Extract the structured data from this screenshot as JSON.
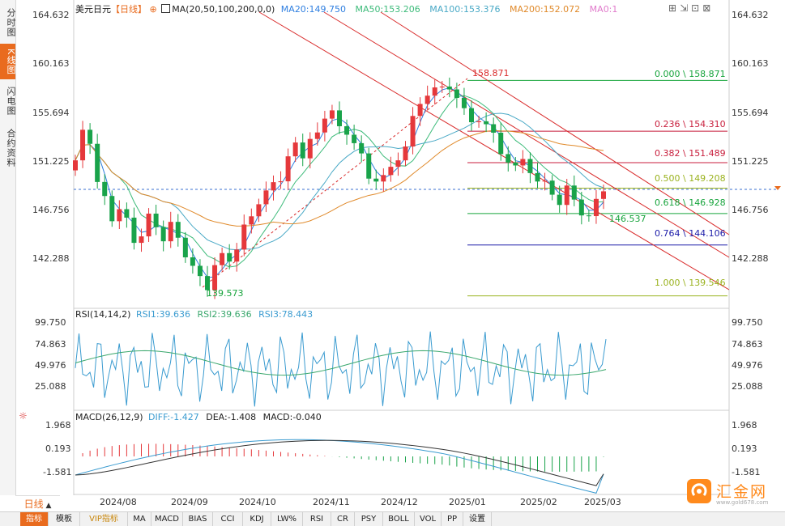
{
  "header": {
    "symbol": "美元日元",
    "period": "【日线】",
    "ma_label": "MA(20,50,100,200,0,0)",
    "ma20": "MA20:149.750",
    "ma50": "MA50:153.206",
    "ma100": "MA100:153.376",
    "ma200": "MA200:152.072",
    "ma0": "MA0:1"
  },
  "colors": {
    "up": "#e5383b",
    "down": "#19a34a",
    "ma20": "#2f7fe0",
    "ma50": "#3dbb7a",
    "ma100": "#49a9c6",
    "ma200": "#e08a2b",
    "fib": "#c81e3c",
    "channel": "#d92b2b",
    "orange": "#e96b1e"
  },
  "sidebar": {
    "tabs": [
      "分时图",
      "K线图",
      "闪电图",
      "合约资料"
    ]
  },
  "price_axis": [
    "164.632",
    "160.163",
    "155.694",
    "151.225",
    "146.756",
    "142.288"
  ],
  "rsi_panel": {
    "label": "RSI(14,14,2)",
    "rsi1": "RSI1:39.636",
    "rsi2": "RSI2:39.636",
    "rsi3": "RSI3:78.443",
    "axis": [
      "99.750",
      "74.863",
      "49.976",
      "25.088"
    ]
  },
  "macd_panel": {
    "label": "MACD(26,12,9)",
    "diff": "DIFF:-1.427",
    "dea": "DEA:-1.408",
    "macd": "MACD:-0.040",
    "axis": [
      "1.968",
      "0.193",
      "-1.581"
    ]
  },
  "time_axis": [
    "2024/08",
    "2024/09",
    "2024/10",
    "2024/11",
    "2024/12",
    "2025/01",
    "2025/02",
    "2025/03"
  ],
  "fib_levels": [
    {
      "label": "0.000 \\ 158.871",
      "value": 158.871,
      "color": "#17a43c"
    },
    {
      "label": "0.236 \\ 154.310",
      "value": 154.31,
      "color": "#c81e3c"
    },
    {
      "label": "0.382 \\ 151.489",
      "value": 151.489,
      "color": "#c81e3c"
    },
    {
      "label": "0.500 \\ 149.208",
      "value": 149.208,
      "color": "#9ab21e"
    },
    {
      "label": "0.618 \\ 146.928",
      "value": 146.928,
      "color": "#17a43c"
    },
    {
      "label": "0.764 \\ 144.106",
      "value": 144.106,
      "color": "#1a1aa8"
    },
    {
      "label": "1.000 \\ 139.546",
      "value": 139.546,
      "color": "#9ab21e"
    }
  ],
  "annotations": {
    "high": "158.871",
    "low": "139.573",
    "recent_low": "146.537"
  },
  "period_tab": "日线",
  "bottom_tabs": [
    "指标",
    "模板",
    "VIP指标",
    "MA",
    "MACD",
    "BIAS",
    "CCI",
    "KDJ",
    "LW%",
    "RSI",
    "CR",
    "PSY",
    "BOLL",
    "VOL",
    "PP",
    "设置"
  ],
  "logo": {
    "text": "汇金网",
    "url": "www.gold678.com"
  },
  "chart_data": {
    "type": "candlestick",
    "title": "美元日元 日线",
    "price_range": [
      138.5,
      165.5
    ],
    "current_price": 149.1,
    "swing_high": 158.871,
    "swing_low": 139.573,
    "moving_averages": [
      {
        "name": "MA20",
        "value": 149.75
      },
      {
        "name": "MA50",
        "value": 153.206
      },
      {
        "name": "MA100",
        "value": 153.376
      },
      {
        "name": "MA200",
        "value": 152.072
      }
    ],
    "close_path": [
      152.0,
      154.5,
      153.0,
      150.0,
      148.5,
      146.0,
      147.5,
      146.5,
      144.0,
      145.0,
      146.8,
      146.0,
      144.5,
      146.0,
      145.0,
      143.0,
      142.0,
      141.5,
      140.0,
      142.0,
      143.5,
      142.5,
      144.0,
      146.0,
      146.5,
      148.0,
      149.0,
      149.5,
      150.0,
      152.0,
      153.0,
      152.0,
      153.5,
      154.5,
      155.5,
      156.0,
      155.0,
      154.0,
      153.0,
      152.5,
      150.0,
      149.5,
      150.5,
      151.0,
      152.0,
      153.0,
      155.5,
      157.0,
      157.5,
      158.0,
      158.5,
      158.0,
      157.0,
      156.5,
      155.0,
      155.5,
      155.0,
      154.0,
      152.5,
      151.5,
      151.0,
      152.0,
      150.5,
      149.5,
      150.0,
      148.5,
      148.0,
      149.5,
      148.0,
      147.0,
      146.7,
      148.0,
      149.1
    ],
    "rsi": {
      "rsi1": 39.636,
      "rsi2": 39.636,
      "rsi3": 78.443,
      "range": [
        10,
        100
      ]
    },
    "macd": {
      "diff": -1.427,
      "dea": -1.408,
      "macd": -0.04,
      "range": [
        -3.0,
        3.0
      ]
    }
  }
}
